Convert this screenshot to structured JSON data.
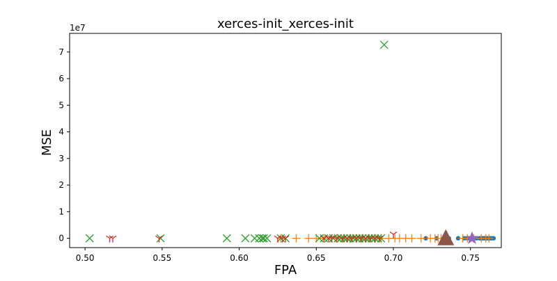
{
  "chart_data": {
    "type": "scatter",
    "title": "xerces-init_xerces-init",
    "xlabel": "FPA",
    "ylabel": "MSE",
    "y_offset_label": "1e7",
    "xlim": [
      0.49,
      0.77
    ],
    "ylim": [
      -0.35,
      7.7
    ],
    "y_unit_multiplier": 10000000,
    "x_ticks": [
      0.5,
      0.55,
      0.6,
      0.65,
      0.7,
      0.75
    ],
    "x_tick_labels": [
      "0.50",
      "0.55",
      "0.60",
      "0.65",
      "0.70",
      "0.75"
    ],
    "y_ticks": [
      0,
      1,
      2,
      3,
      4,
      5,
      6,
      7
    ],
    "y_tick_labels": [
      "0",
      "1",
      "2",
      "3",
      "4",
      "5",
      "6",
      "7"
    ],
    "grid": false,
    "series": [
      {
        "marker": "circle",
        "color": "#1f77b4",
        "points": [
          [
            0.721,
            0
          ],
          [
            0.728,
            0
          ],
          [
            0.736,
            0
          ],
          [
            0.742,
            0
          ],
          [
            0.746,
            0
          ],
          [
            0.748,
            0
          ],
          [
            0.751,
            0
          ],
          [
            0.754,
            0
          ],
          [
            0.756,
            0
          ],
          [
            0.757,
            0
          ],
          [
            0.758,
            0
          ],
          [
            0.759,
            0
          ],
          [
            0.76,
            0
          ],
          [
            0.761,
            0
          ],
          [
            0.762,
            0
          ],
          [
            0.763,
            0
          ],
          [
            0.764,
            0
          ],
          [
            0.765,
            0
          ]
        ]
      },
      {
        "marker": "plus",
        "color": "#ff7f0e",
        "points": [
          [
            0.627,
            0
          ],
          [
            0.637,
            0
          ],
          [
            0.645,
            0
          ],
          [
            0.65,
            0
          ],
          [
            0.655,
            0
          ],
          [
            0.66,
            0
          ],
          [
            0.664,
            0
          ],
          [
            0.668,
            0
          ],
          [
            0.672,
            0
          ],
          [
            0.676,
            0
          ],
          [
            0.68,
            0
          ],
          [
            0.684,
            0
          ],
          [
            0.688,
            0
          ],
          [
            0.692,
            0
          ],
          [
            0.697,
            0
          ],
          [
            0.701,
            0
          ],
          [
            0.704,
            0
          ],
          [
            0.708,
            0
          ],
          [
            0.712,
            0
          ],
          [
            0.718,
            0
          ],
          [
            0.724,
            0
          ],
          [
            0.727,
            0
          ],
          [
            0.729,
            0
          ],
          [
            0.731,
            0
          ],
          [
            0.745,
            0
          ],
          [
            0.748,
            0
          ],
          [
            0.752,
            0
          ],
          [
            0.757,
            0
          ],
          [
            0.76,
            0
          ],
          [
            0.762,
            0
          ]
        ]
      },
      {
        "marker": "x",
        "color": "#2ca02c",
        "points": [
          [
            0.503,
            0
          ],
          [
            0.549,
            0
          ],
          [
            0.592,
            0
          ],
          [
            0.604,
            0
          ],
          [
            0.61,
            0
          ],
          [
            0.613,
            0
          ],
          [
            0.615,
            0
          ],
          [
            0.616,
            0
          ],
          [
            0.618,
            0
          ],
          [
            0.627,
            0
          ],
          [
            0.63,
            0
          ],
          [
            0.652,
            0
          ],
          [
            0.655,
            0
          ],
          [
            0.658,
            0
          ],
          [
            0.661,
            0
          ],
          [
            0.664,
            0
          ],
          [
            0.666,
            0
          ],
          [
            0.668,
            0
          ],
          [
            0.67,
            0
          ],
          [
            0.672,
            0
          ],
          [
            0.674,
            0
          ],
          [
            0.676,
            0
          ],
          [
            0.678,
            0
          ],
          [
            0.68,
            0
          ],
          [
            0.682,
            0
          ],
          [
            0.684,
            0
          ],
          [
            0.686,
            0
          ],
          [
            0.688,
            0
          ],
          [
            0.69,
            0
          ],
          [
            0.692,
            0
          ],
          [
            0.694,
            7.27
          ]
        ]
      },
      {
        "marker": "tri_down",
        "color": "#d62728",
        "points": [
          [
            0.516,
            0
          ],
          [
            0.518,
            0
          ],
          [
            0.548,
            0
          ],
          [
            0.625,
            0
          ],
          [
            0.628,
            0
          ],
          [
            0.63,
            0
          ],
          [
            0.655,
            0
          ],
          [
            0.658,
            0
          ],
          [
            0.66,
            0
          ],
          [
            0.663,
            0
          ],
          [
            0.667,
            0
          ],
          [
            0.67,
            0
          ],
          [
            0.673,
            0
          ],
          [
            0.676,
            0
          ],
          [
            0.679,
            0
          ],
          [
            0.682,
            0
          ],
          [
            0.685,
            0
          ],
          [
            0.688,
            0
          ],
          [
            0.691,
            0
          ],
          [
            0.7,
            0.15
          ]
        ]
      },
      {
        "marker": "star",
        "color": "#9467bd",
        "points": [
          [
            0.751,
            0
          ]
        ]
      },
      {
        "marker": "triangle",
        "color": "#8c564b",
        "points": [
          [
            0.734,
            0
          ]
        ]
      }
    ]
  }
}
